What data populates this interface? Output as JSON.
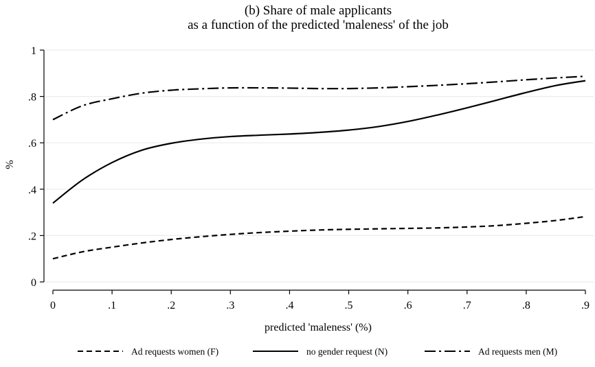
{
  "chart_data": {
    "type": "line",
    "title": "(b) Share of male applicants",
    "subtitle": "as a function of the predicted 'maleness' of the job",
    "xlabel": "predicted 'maleness' (%)",
    "ylabel": "%",
    "xlim": [
      0,
      0.9
    ],
    "ylim": [
      0,
      1
    ],
    "x_ticks": [
      0,
      0.1,
      0.2,
      0.3,
      0.4,
      0.5,
      0.6,
      0.7,
      0.8,
      0.9
    ],
    "x_tick_labels": [
      "0",
      ".1",
      ".2",
      ".3",
      ".4",
      ".5",
      ".6",
      ".7",
      ".8",
      ".9"
    ],
    "y_ticks": [
      0,
      0.2,
      0.4,
      0.6,
      0.8,
      1
    ],
    "y_tick_labels": [
      "0",
      ".2",
      ".4",
      ".6",
      ".8",
      "1"
    ],
    "grid": true,
    "legend_position": "bottom",
    "x": [
      0,
      0.05,
      0.1,
      0.15,
      0.2,
      0.25,
      0.3,
      0.35,
      0.4,
      0.45,
      0.5,
      0.55,
      0.6,
      0.65,
      0.7,
      0.75,
      0.8,
      0.85,
      0.9
    ],
    "series": [
      {
        "name": "Ad requests women (F)",
        "style": "dashed",
        "color": "#000000",
        "values": [
          0.1,
          0.13,
          0.15,
          0.168,
          0.183,
          0.195,
          0.205,
          0.213,
          0.219,
          0.224,
          0.227,
          0.229,
          0.231,
          0.233,
          0.237,
          0.243,
          0.253,
          0.265,
          0.282
        ]
      },
      {
        "name": "no gender request (N)",
        "style": "solid",
        "color": "#000000",
        "values": [
          0.34,
          0.44,
          0.515,
          0.568,
          0.598,
          0.616,
          0.627,
          0.633,
          0.638,
          0.645,
          0.655,
          0.67,
          0.692,
          0.72,
          0.751,
          0.784,
          0.817,
          0.847,
          0.868
        ]
      },
      {
        "name": "Ad requests men (M)",
        "style": "dash-dot",
        "color": "#000000",
        "values": [
          0.7,
          0.76,
          0.79,
          0.814,
          0.827,
          0.833,
          0.837,
          0.837,
          0.836,
          0.834,
          0.834,
          0.837,
          0.842,
          0.848,
          0.855,
          0.863,
          0.872,
          0.88,
          0.887
        ]
      }
    ]
  }
}
